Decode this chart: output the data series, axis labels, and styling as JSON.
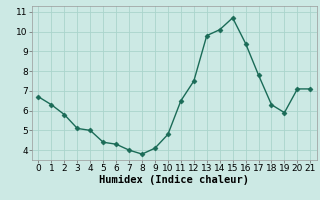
{
  "x": [
    0,
    1,
    2,
    3,
    4,
    5,
    6,
    7,
    8,
    9,
    10,
    11,
    12,
    13,
    14,
    15,
    16,
    17,
    18,
    19,
    20,
    21
  ],
  "y": [
    6.7,
    6.3,
    5.8,
    5.1,
    5.0,
    4.4,
    4.3,
    4.0,
    3.8,
    4.1,
    4.8,
    6.5,
    7.5,
    9.8,
    10.1,
    10.7,
    9.4,
    7.8,
    6.3,
    5.9,
    7.1,
    7.1
  ],
  "line_color": "#1a6b57",
  "marker": "D",
  "marker_size": 2.5,
  "line_width": 1.0,
  "xlabel": "Humidex (Indice chaleur)",
  "xlim": [
    -0.5,
    21.5
  ],
  "ylim": [
    3.5,
    11.3
  ],
  "yticks": [
    4,
    5,
    6,
    7,
    8,
    9,
    10,
    11
  ],
  "xticks": [
    0,
    1,
    2,
    3,
    4,
    5,
    6,
    7,
    8,
    9,
    10,
    11,
    12,
    13,
    14,
    15,
    16,
    17,
    18,
    19,
    20,
    21
  ],
  "bg_color": "#cce9e4",
  "grid_color": "#aad4cc",
  "xlabel_fontsize": 7.5,
  "tick_fontsize": 6.5
}
